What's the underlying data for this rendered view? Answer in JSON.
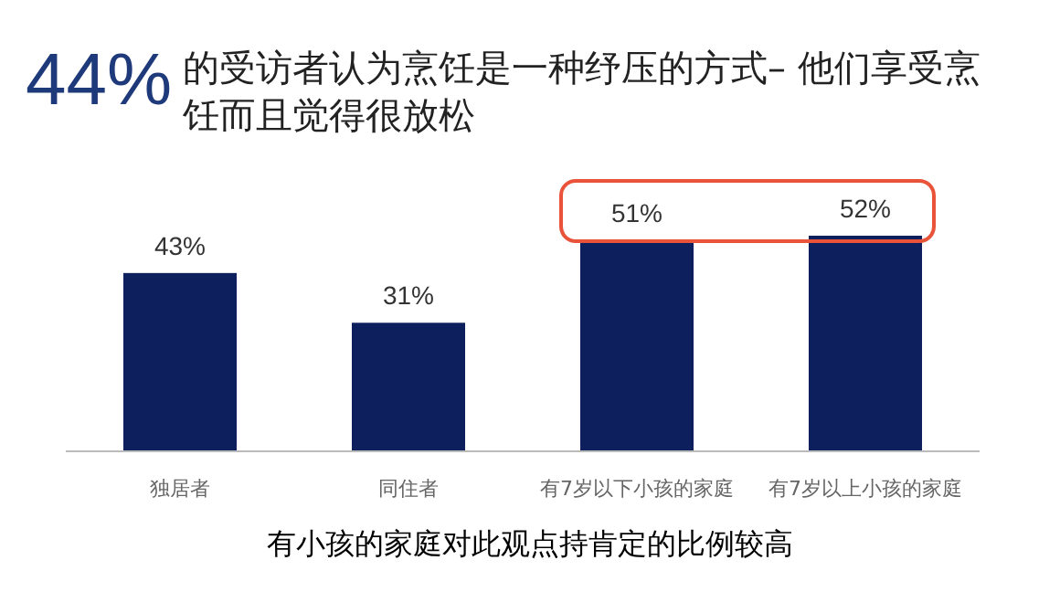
{
  "chart_data": {
    "type": "bar",
    "title": "44%",
    "subtitle": "的受访者认为烹饪是一种纾压的方式– 他们享受烹饪而且觉得很放松",
    "categories": [
      "独居者",
      "同住者",
      "有7岁以下小孩的家庭",
      "有7岁以上小孩的家庭"
    ],
    "values": [
      43,
      31,
      51,
      52
    ],
    "value_labels": [
      "43%",
      "31%",
      "51%",
      "52%"
    ],
    "color": "#0d1f5c",
    "annotations": [
      "有小孩的家庭对此观点持肯定的比例较高"
    ]
  }
}
